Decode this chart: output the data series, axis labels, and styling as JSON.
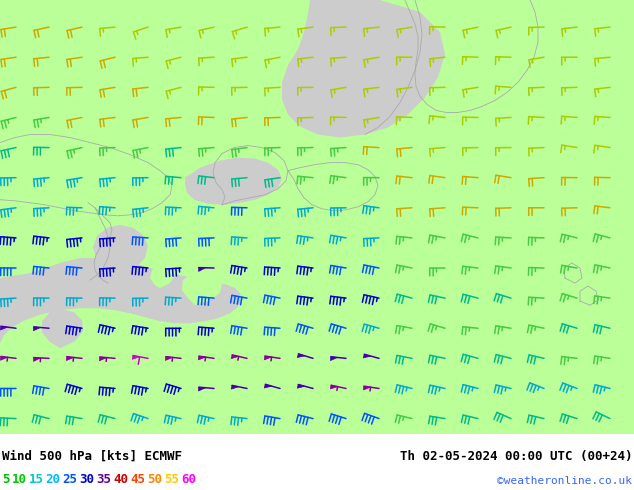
{
  "title_left": "Wind 500 hPa [kts] ECMWF",
  "title_right": "Th 02-05-2024 00:00 UTC (00+24)",
  "credit": "©weatheronline.co.uk",
  "legend_values": [
    5,
    10,
    15,
    20,
    25,
    30,
    35,
    40,
    45,
    50,
    55,
    60
  ],
  "legend_colors": [
    "#00bb00",
    "#00cc00",
    "#00cccc",
    "#00bbff",
    "#0055ff",
    "#0000cc",
    "#660099",
    "#cc0000",
    "#ff4400",
    "#ff8800",
    "#ffcc00",
    "#ff00ff"
  ],
  "bg_color": "#ffffff",
  "land_green": "#aaff88",
  "land_gray": "#cccccc",
  "border_color": "#999999",
  "fig_width": 6.34,
  "fig_height": 4.9,
  "dpi": 100
}
